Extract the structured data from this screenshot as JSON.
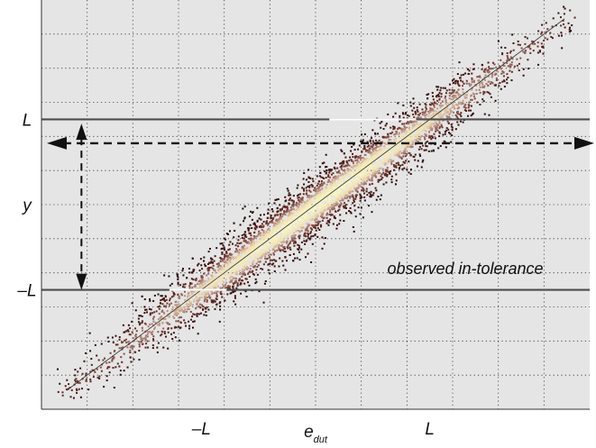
{
  "chart_data": {
    "type": "scatter",
    "title": "",
    "xlabel": "e",
    "xlabel_sub": "dut",
    "ylabel": "y",
    "xlim": [
      -2.4,
      2.4
    ],
    "ylim": [
      -2.4,
      2.4
    ],
    "grid": true,
    "x_tick_labels": [
      {
        "value": -1,
        "label": "–L"
      },
      {
        "value": 1,
        "label": "L"
      }
    ],
    "y_tick_labels": [
      {
        "value": 1,
        "label": "L"
      },
      {
        "value": -1,
        "label": "–L"
      }
    ],
    "reference_line": {
      "slope": 1,
      "intercept": 0,
      "x_range": [
        -2.18,
        2.18
      ]
    },
    "tolerance_lines_y": [
      1,
      -1
    ],
    "tolerance_segments": [
      {
        "y": 1,
        "x_range": [
          0.12,
          0.88
        ]
      },
      {
        "y": -1,
        "x_range": [
          -1.28,
          -0.78
        ]
      }
    ],
    "dashed_arrows": {
      "horizontal_at_y": 0.72,
      "vertical_at_x": -2.05,
      "vertical_y_range": [
        -1.0,
        0.95
      ]
    },
    "scatter_distribution": {
      "mean_line": "y = x",
      "x_range": [
        -2.25,
        2.25
      ],
      "perpendicular_spread": 0.11,
      "colormap": [
        "#2b0608",
        "#6a2f26",
        "#b3867a",
        "#f3e0a6",
        "#fbf8c4"
      ]
    },
    "annotation": "observed in-tolerance",
    "background": "#e5e5e5"
  }
}
